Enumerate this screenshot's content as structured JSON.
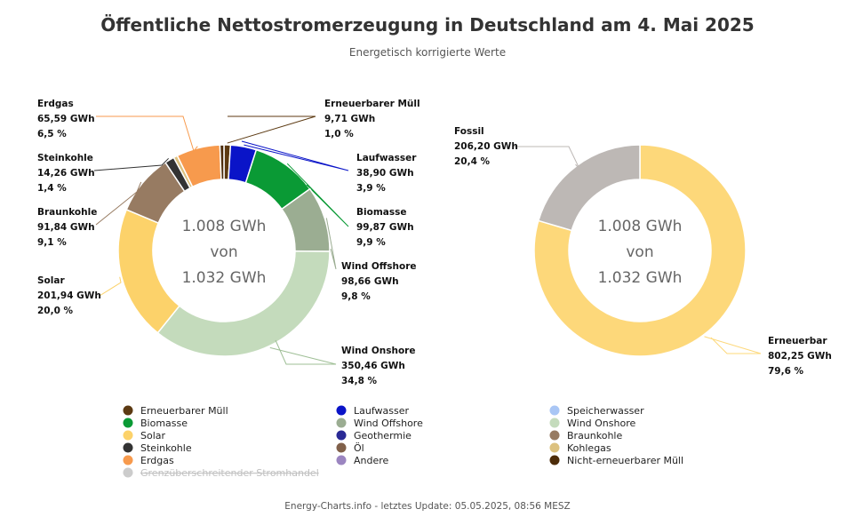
{
  "title": "Öffentliche Nettostromerzeugung in Deutschland am 4. Mai 2025",
  "subtitle": "Energetisch korrigierte Werte",
  "footer": "Energy-Charts.info - letztes Update: 05.05.2025, 08:56 MESZ",
  "chart_data": [
    {
      "type": "pie",
      "unit": "GWh",
      "center_text": [
        "1.008 GWh",
        "von",
        "1.032 GWh"
      ],
      "slices": [
        {
          "name": "Erneuerbarer Müll",
          "value": 9.71,
          "value_label": "9,71 GWh",
          "percent_label": "1,0 %",
          "color": "#5c3a12",
          "labeled": true
        },
        {
          "name": "Laufwasser",
          "value": 38.9,
          "value_label": "38,90 GWh",
          "percent_label": "3,9 %",
          "color": "#0a14c8",
          "labeled": true
        },
        {
          "name": "Biomasse",
          "value": 99.87,
          "value_label": "99,87 GWh",
          "percent_label": "9,9 %",
          "color": "#0a9a35",
          "labeled": true
        },
        {
          "name": "Wind Offshore",
          "value": 98.66,
          "value_label": "98,66 GWh",
          "percent_label": "9,8 %",
          "color": "#9bad92",
          "labeled": true
        },
        {
          "name": "Wind Onshore",
          "value": 350.46,
          "value_label": "350,46 GWh",
          "percent_label": "34,8 %",
          "color": "#c4dbbc",
          "labeled": true
        },
        {
          "name": "Solar",
          "value": 201.94,
          "value_label": "201,94 GWh",
          "percent_label": "20,0 %",
          "color": "#fcd26a",
          "labeled": true
        },
        {
          "name": "Braunkohle",
          "value": 91.84,
          "value_label": "91,84 GWh",
          "percent_label": "9,1 %",
          "color": "#977b62",
          "labeled": true
        },
        {
          "name": "Steinkohle",
          "value": 14.26,
          "value_label": "14,26 GWh",
          "percent_label": "1,4 %",
          "color": "#333333",
          "labeled": true
        },
        {
          "name": "Kohlegas",
          "value": 6.0,
          "color": "#dcc17f",
          "labeled": false
        },
        {
          "name": "Erdgas",
          "value": 65.59,
          "value_label": "65,59 GWh",
          "percent_label": "6,5 %",
          "color": "#f79a4d",
          "labeled": true
        },
        {
          "name": "Nicht-erneuerbarer Müll",
          "value": 6.0,
          "color": "#4d2c0a",
          "labeled": false
        }
      ]
    },
    {
      "type": "pie",
      "unit": "GWh",
      "center_text": [
        "1.008 GWh",
        "von",
        "1.032 GWh"
      ],
      "slices": [
        {
          "name": "Erneuerbar",
          "value": 802.25,
          "value_label": "802,25 GWh",
          "percent_label": "79,6 %",
          "color": "#fdd87a",
          "labeled": true
        },
        {
          "name": "Fossil",
          "value": 206.2,
          "value_label": "206,20 GWh",
          "percent_label": "20,4 %",
          "color": "#bdb8b5",
          "labeled": true
        }
      ]
    }
  ],
  "legend": [
    {
      "name": "Erneuerbarer Müll",
      "color": "#5c3a12",
      "disabled": false
    },
    {
      "name": "Laufwasser",
      "color": "#0a14c8",
      "disabled": false
    },
    {
      "name": "Speicherwasser",
      "color": "#a9c6f5",
      "disabled": false
    },
    {
      "name": "Biomasse",
      "color": "#0a9a35",
      "disabled": false
    },
    {
      "name": "Wind Offshore",
      "color": "#9bad92",
      "disabled": false
    },
    {
      "name": "Wind Onshore",
      "color": "#c4dbbc",
      "disabled": false
    },
    {
      "name": "Solar",
      "color": "#fcd26a",
      "disabled": false
    },
    {
      "name": "Geothermie",
      "color": "#2a2a95",
      "disabled": false
    },
    {
      "name": "Braunkohle",
      "color": "#977b62",
      "disabled": false
    },
    {
      "name": "Steinkohle",
      "color": "#333333",
      "disabled": false
    },
    {
      "name": "Öl",
      "color": "#80604a",
      "disabled": false
    },
    {
      "name": "Kohlegas",
      "color": "#dcc17f",
      "disabled": false
    },
    {
      "name": "Erdgas",
      "color": "#f79a4d",
      "disabled": false
    },
    {
      "name": "Andere",
      "color": "#9b85c0",
      "disabled": false
    },
    {
      "name": "Nicht-erneuerbarer Müll",
      "color": "#4d2c0a",
      "disabled": false
    },
    {
      "name": "Grenzüberschreitender Stromhandel",
      "color": "#cccccc",
      "disabled": true
    }
  ]
}
